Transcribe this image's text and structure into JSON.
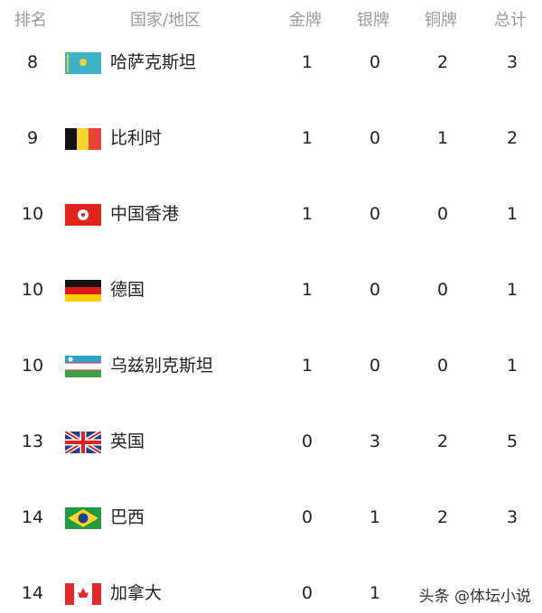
{
  "header": {
    "rank": "排名",
    "country": "国家/地区",
    "gold": "金牌",
    "silver": "银牌",
    "bronze": "铜牌",
    "total": "总计"
  },
  "rows": [
    {
      "rank": "8",
      "flag": "kazakhstan-flag",
      "country": "哈萨克斯坦",
      "gold": "1",
      "silver": "0",
      "bronze": "2",
      "total": "3"
    },
    {
      "rank": "9",
      "flag": "belgium-flag",
      "country": "比利时",
      "gold": "1",
      "silver": "0",
      "bronze": "1",
      "total": "2"
    },
    {
      "rank": "10",
      "flag": "hong-kong-flag",
      "country": "中国香港",
      "gold": "1",
      "silver": "0",
      "bronze": "0",
      "total": "1"
    },
    {
      "rank": "10",
      "flag": "germany-flag",
      "country": "德国",
      "gold": "1",
      "silver": "0",
      "bronze": "0",
      "total": "1"
    },
    {
      "rank": "10",
      "flag": "uzbekistan-flag",
      "country": "乌兹别克斯坦",
      "gold": "1",
      "silver": "0",
      "bronze": "0",
      "total": "1"
    },
    {
      "rank": "13",
      "flag": "uk-flag",
      "country": "英国",
      "gold": "0",
      "silver": "3",
      "bronze": "2",
      "total": "5"
    },
    {
      "rank": "14",
      "flag": "brazil-flag",
      "country": "巴西",
      "gold": "0",
      "silver": "1",
      "bronze": "2",
      "total": "3"
    },
    {
      "rank": "14",
      "flag": "canada-flag",
      "country": "加拿大",
      "gold": "0",
      "silver": "1",
      "bronze": "",
      "total": ""
    }
  ],
  "watermark": "头条 @体坛小说"
}
